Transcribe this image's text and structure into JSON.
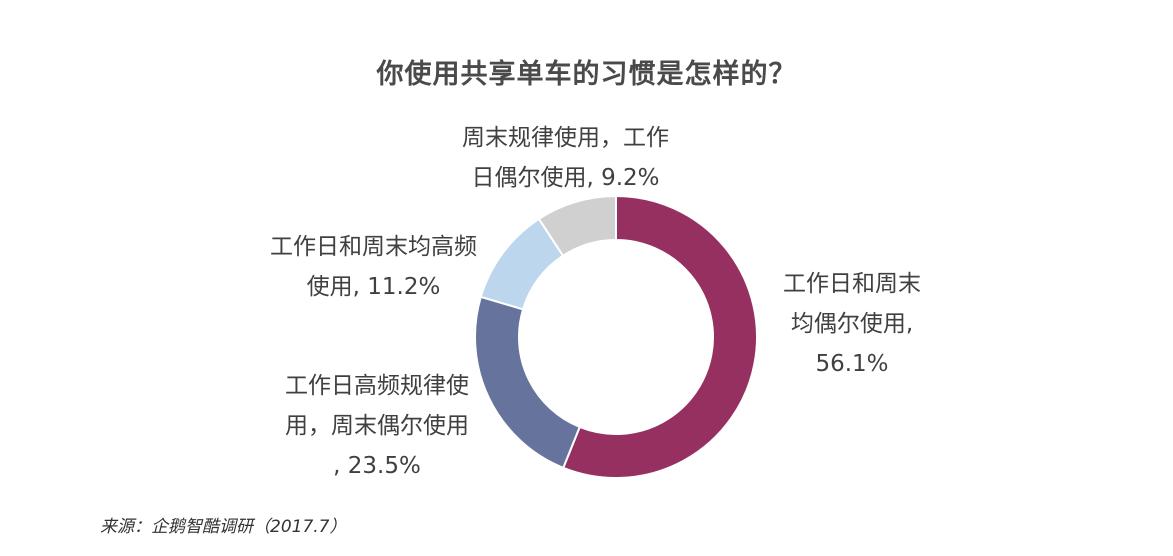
{
  "chart_data": {
    "type": "pie",
    "title": "你使用共享单车的习惯是怎样的？",
    "categories": [
      "工作日和周末均偶尔使用",
      "工作日高频规律使用，周末偶尔使用",
      "工作日和周末均高频使用",
      "周末规律使用，工作日偶尔使用"
    ],
    "values": [
      56.1,
      23.5,
      11.2,
      9.2
    ],
    "colors": [
      "#953060",
      "#66739c",
      "#bcd6ed",
      "#d0d0d0"
    ],
    "labels": [
      {
        "lines": [
          "工作日和周末",
          "均偶尔使用,",
          "56.1%"
        ]
      },
      {
        "lines": [
          "工作日高频规律使",
          "用，周末偶尔使用",
          ", 23.5%"
        ]
      },
      {
        "lines": [
          "工作日和周末均高频",
          "使用, 11.2%"
        ]
      },
      {
        "lines": [
          "周末规律使用，工作",
          "日偶尔使用, 9.2%"
        ]
      }
    ],
    "start_angle_deg": 0,
    "direction": "clockwise",
    "hole": true
  },
  "source": "来源：企鹅智酷调研（2017.7）"
}
